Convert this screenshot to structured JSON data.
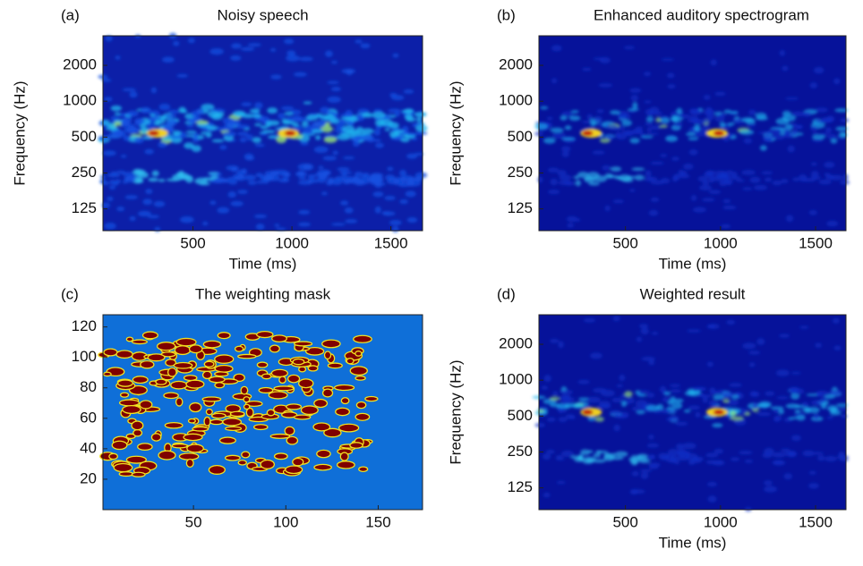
{
  "chart_data": [
    {
      "type": "heatmap",
      "panel_label": "(a)",
      "title": "Noisy speech",
      "xlabel": "Time (ms)",
      "ylabel": "Frequency (Hz)",
      "xlim": [
        45,
        1660
      ],
      "xticks": [
        500,
        1000,
        1500
      ],
      "ylim": [
        82,
        3540
      ],
      "yticks": [
        125,
        250,
        500,
        1000,
        2000
      ],
      "log_y": true
    },
    {
      "type": "heatmap",
      "panel_label": "(b)",
      "title": "Enhanced auditory spectrogram",
      "xlabel": "Time (ms)",
      "ylabel": "Frequency (Hz)",
      "xlim": [
        45,
        1660
      ],
      "xticks": [
        500,
        1000,
        1500
      ],
      "ylim": [
        82,
        3540
      ],
      "yticks": [
        125,
        250,
        500,
        1000,
        2000
      ],
      "log_y": true
    },
    {
      "type": "mask",
      "panel_label": "(c)",
      "title": "The weighting mask",
      "xlim": [
        1,
        174
      ],
      "xticks": [
        50,
        100,
        150
      ],
      "ylim": [
        0,
        128
      ],
      "yticks": [
        20,
        40,
        60,
        80,
        100,
        120
      ],
      "log_y": false
    },
    {
      "type": "heatmap",
      "panel_label": "(d)",
      "title": "Weighted result",
      "xlabel": "Time (ms)",
      "ylabel": "Frequency (Hz)",
      "xlim": [
        45,
        1660
      ],
      "xticks": [
        500,
        1000,
        1500
      ],
      "ylim": [
        82,
        3540
      ],
      "yticks": [
        125,
        250,
        500,
        1000,
        2000
      ],
      "log_y": true
    }
  ]
}
